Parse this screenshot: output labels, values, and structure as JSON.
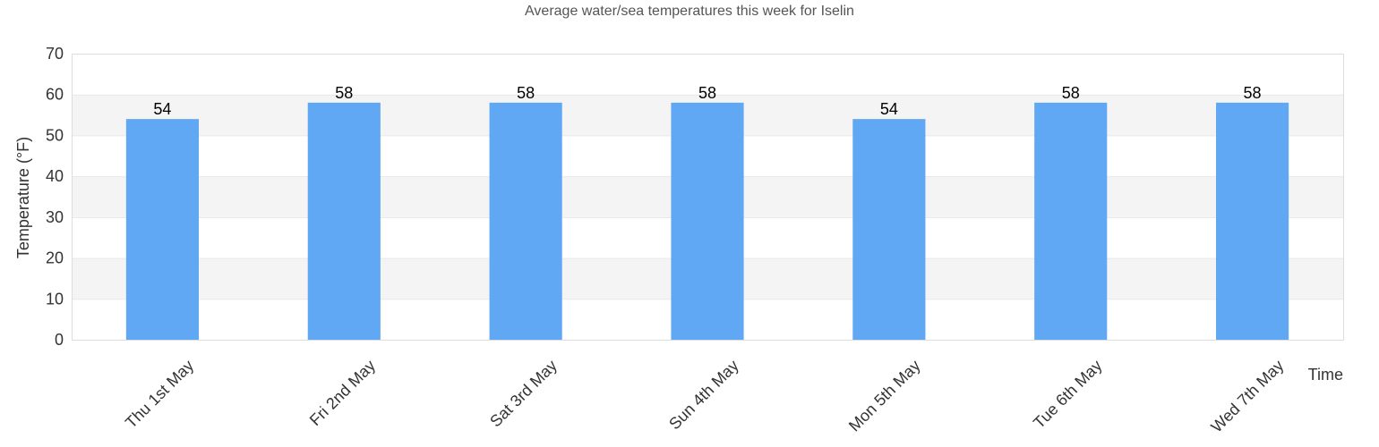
{
  "chart_data": {
    "type": "bar",
    "title": "Average water/sea temperatures this week for Iselin",
    "xlabel": "Time",
    "ylabel": "Temperature (°F)",
    "categories": [
      "Thu 1st May",
      "Fri 2nd May",
      "Sat 3rd May",
      "Sun 4th May",
      "Mon 5th May",
      "Tue 6th May",
      "Wed 7th May"
    ],
    "values": [
      54,
      58,
      58,
      58,
      54,
      58,
      58
    ],
    "ylim": [
      0,
      70
    ],
    "yticks": [
      0,
      10,
      20,
      30,
      40,
      50,
      60,
      70
    ],
    "grid": true,
    "bar_color": "#60a7f4",
    "band_color": "#f4f4f4"
  }
}
